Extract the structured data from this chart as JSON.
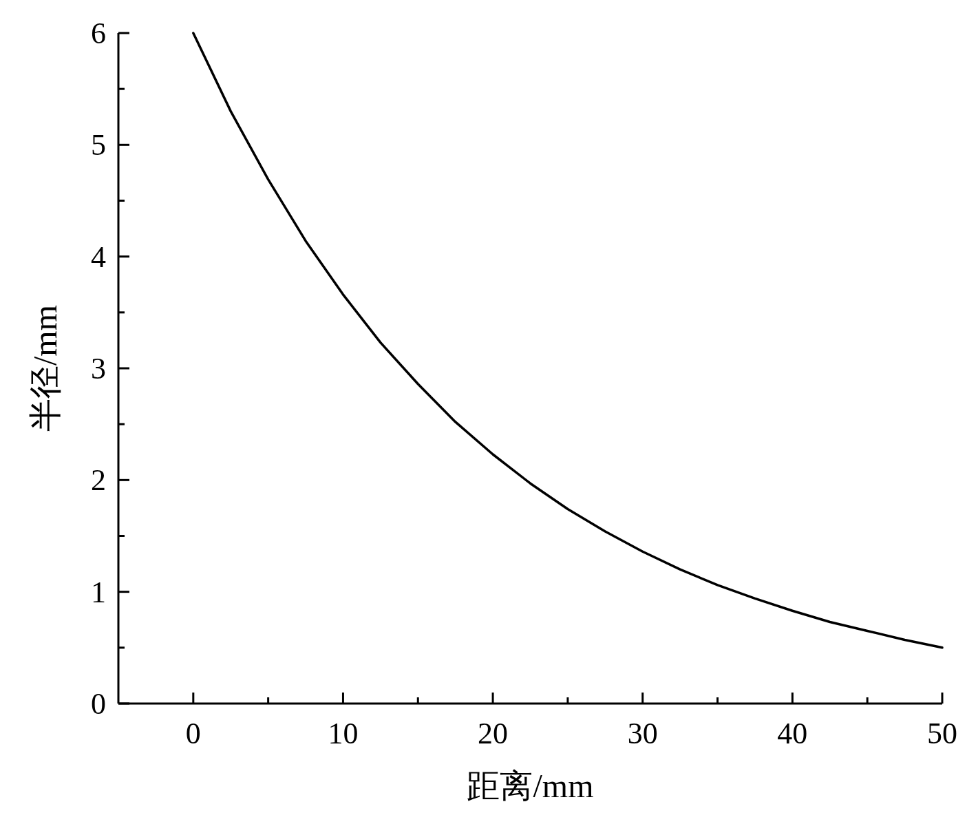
{
  "chart_data": {
    "type": "line",
    "xlabel": "距离/mm",
    "ylabel": "半径/mm",
    "x": [
      0,
      2.5,
      5,
      7.5,
      10,
      12.5,
      15,
      17.5,
      20,
      22.5,
      25,
      27.5,
      30,
      32.5,
      35,
      37.5,
      40,
      42.5,
      45,
      47.5,
      50
    ],
    "series": [
      {
        "color": "#000000",
        "values": [
          6.0,
          5.3,
          4.69,
          4.14,
          3.66,
          3.23,
          2.86,
          2.52,
          2.23,
          1.97,
          1.74,
          1.54,
          1.36,
          1.2,
          1.06,
          0.94,
          0.83,
          0.73,
          0.65,
          0.57,
          0.5
        ]
      }
    ],
    "xlim": [
      -5,
      50
    ],
    "ylim": [
      0,
      6
    ],
    "xticks": [
      0,
      {
        "value": 5,
        "label": null
      },
      10,
      {
        "value": 15,
        "label": null
      },
      20,
      {
        "value": 25,
        "label": null
      },
      30,
      {
        "value": 35,
        "label": null
      },
      40,
      {
        "value": 45,
        "label": null
      },
      50
    ],
    "yticks": [
      0,
      {
        "value": 0.5,
        "label": null
      },
      1,
      {
        "value": 1.5,
        "label": null
      },
      2,
      {
        "value": 2.5,
        "label": null
      },
      3,
      {
        "value": 3.5,
        "label": null
      },
      4,
      {
        "value": 4.5,
        "label": null
      },
      5,
      {
        "value": 5.5,
        "label": null
      },
      6
    ],
    "grid": false,
    "marker": "none",
    "line_style": "solid"
  }
}
